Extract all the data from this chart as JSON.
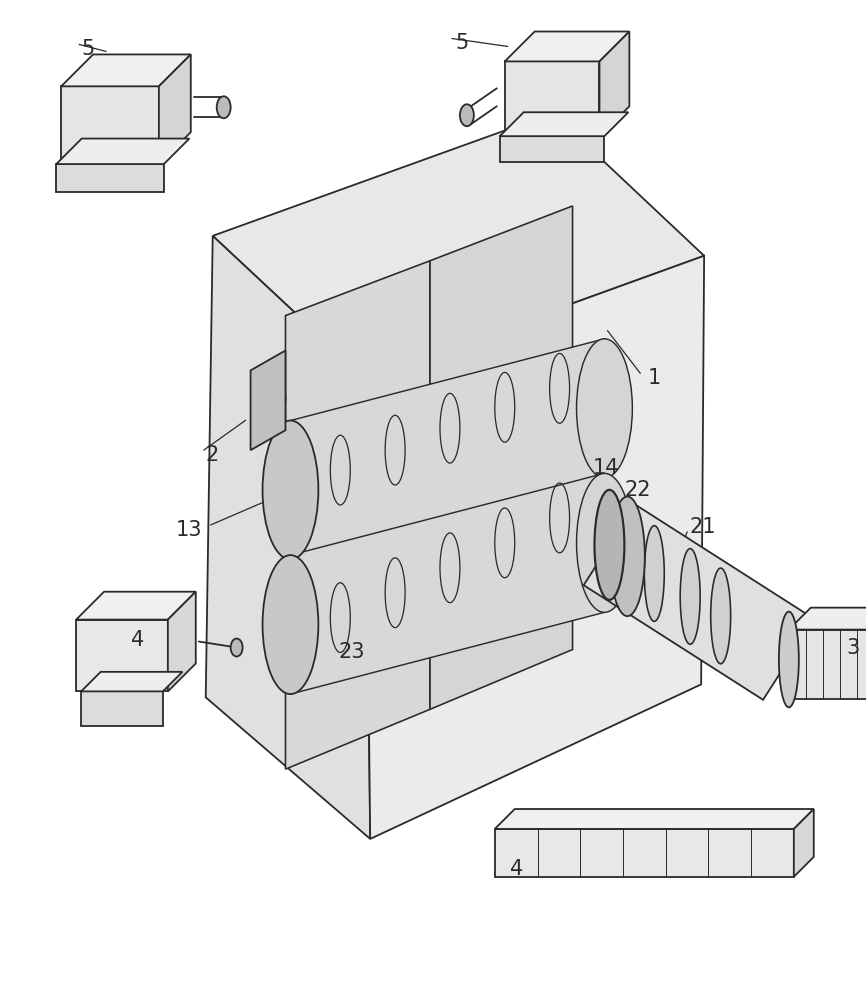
{
  "bg_color": "#ffffff",
  "line_color": "#2a2a2a",
  "line_width": 1.3,
  "figure_width": 8.67,
  "figure_height": 10.0,
  "dpi": 100
}
